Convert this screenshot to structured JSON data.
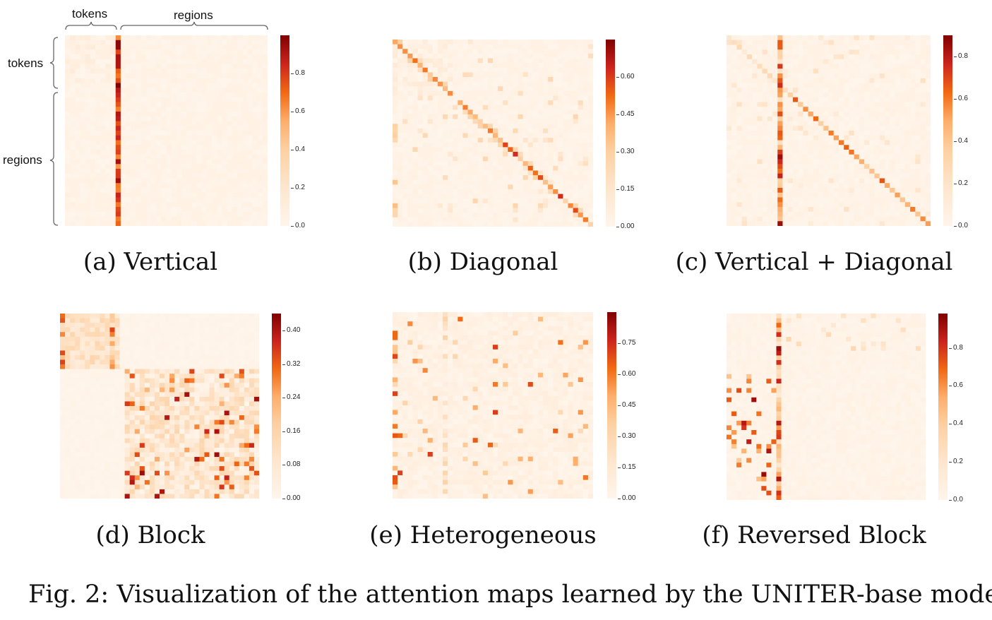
{
  "figure_caption": "Fig. 2: Visualization of the attention maps learned by the UNITER-base model",
  "annotations": {
    "top_tokens": "tokens",
    "top_regions": "regions",
    "left_tokens": "tokens",
    "left_regions": "regions"
  },
  "colors": {
    "scale_low": "#fff5eb",
    "scale_mid": "#fdae6b",
    "scale_high": "#e6550d",
    "scale_max": "#7f0000"
  },
  "panels": [
    {
      "caption": "(a) Vertical",
      "pattern": "vertical",
      "colorbar": {
        "vmin": 0.0,
        "vmax": 1.0,
        "ticks": [
          "0.0",
          "0.2",
          "0.4",
          "0.6",
          "0.8"
        ]
      }
    },
    {
      "caption": "(b) Diagonal",
      "pattern": "diagonal",
      "colorbar": {
        "vmin": 0.0,
        "vmax": 0.75,
        "ticks": [
          "0.00",
          "0.15",
          "0.30",
          "0.45",
          "0.60"
        ]
      }
    },
    {
      "caption": "(c) Vertical + Diagonal",
      "pattern": "vertical_diagonal",
      "colorbar": {
        "vmin": 0.0,
        "vmax": 0.9,
        "ticks": [
          "0.0",
          "0.2",
          "0.4",
          "0.6",
          "0.8"
        ]
      }
    },
    {
      "caption": "(d) Block",
      "pattern": "block",
      "colorbar": {
        "vmin": 0.0,
        "vmax": 0.44,
        "ticks": [
          "0.00",
          "0.08",
          "0.16",
          "0.24",
          "0.32",
          "0.40"
        ]
      }
    },
    {
      "caption": "(e) Heterogeneous",
      "pattern": "heterogeneous",
      "colorbar": {
        "vmin": 0.0,
        "vmax": 0.9,
        "ticks": [
          "0.00",
          "0.15",
          "0.30",
          "0.45",
          "0.60",
          "0.75"
        ]
      }
    },
    {
      "caption": "(f) Reversed Block",
      "pattern": "reversed_block",
      "colorbar": {
        "vmin": 0.0,
        "vmax": 0.98,
        "ticks": [
          "0.0",
          "0.2",
          "0.4",
          "0.6",
          "0.8"
        ]
      }
    }
  ]
}
